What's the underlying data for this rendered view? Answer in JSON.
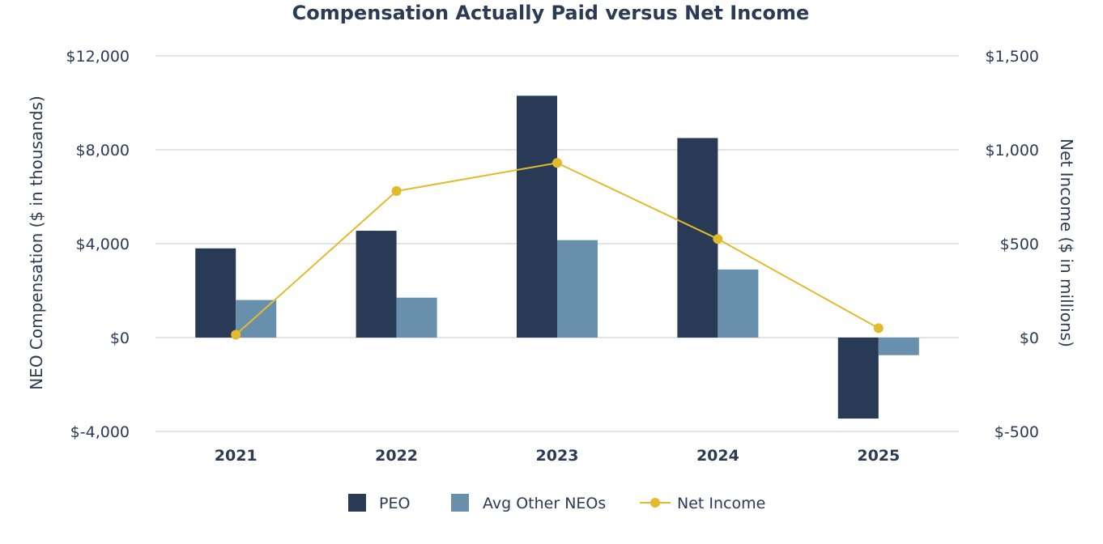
{
  "chart_data": {
    "type": "bar",
    "title": "Compensation Actually Paid versus Net Income",
    "categories": [
      "2021",
      "2022",
      "2023",
      "2024",
      "2025"
    ],
    "series": [
      {
        "name": "PEO",
        "kind": "bar",
        "axis": "left",
        "color": "#283a56",
        "values": [
          3800,
          4550,
          10300,
          8500,
          -3450
        ]
      },
      {
        "name": "Avg Other NEOs",
        "kind": "bar",
        "axis": "left",
        "color": "#6890ad",
        "values": [
          1600,
          1700,
          4150,
          2900,
          -750
        ]
      },
      {
        "name": "Net Income",
        "kind": "line",
        "axis": "right",
        "color": "#e2bb2c",
        "values": [
          15,
          780,
          930,
          525,
          50
        ]
      }
    ],
    "y_left": {
      "label": "NEO Compensation ($ in thousands)",
      "min": -4000,
      "max": 12000,
      "ticks": [
        12000,
        8000,
        4000,
        0,
        -4000
      ],
      "tick_labels": [
        "$12,000",
        "$8,000",
        "$4,000",
        "$0",
        "$-4,000"
      ]
    },
    "y_right": {
      "label": "Net Income ($ in millions)",
      "min": -500,
      "max": 1500,
      "ticks": [
        1500,
        1000,
        500,
        0,
        -500
      ],
      "tick_labels": [
        "$1,500",
        "$1,000",
        "$500",
        "$0",
        "$-500"
      ]
    },
    "grid": true,
    "legend": "bottom-center"
  }
}
